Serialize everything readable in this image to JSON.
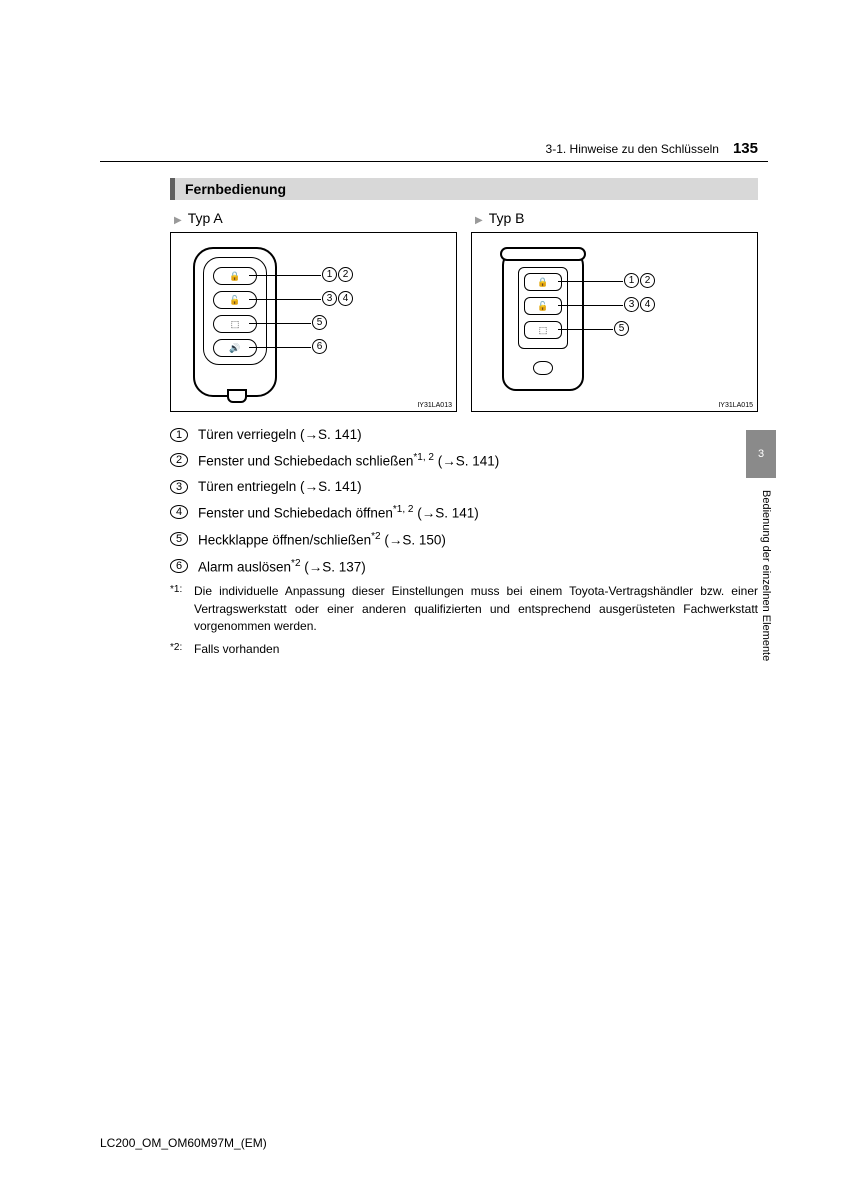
{
  "header": {
    "breadcrumb": "3-1. Hinweise zu den Schlüsseln",
    "page_number": "135"
  },
  "section_title": "Fernbedienung",
  "types": {
    "a": {
      "label": "Typ A",
      "diagram_id": "IY31LA013",
      "callouts": [
        "1",
        "2",
        "3",
        "4",
        "5",
        "6"
      ]
    },
    "b": {
      "label": "Typ B",
      "diagram_id": "IY31LA015",
      "callouts": [
        "1",
        "2",
        "3",
        "4",
        "5"
      ]
    }
  },
  "items": [
    {
      "n": "1",
      "text": "Türen verriegeln (",
      "page": "S. 141",
      "suffix": ")"
    },
    {
      "n": "2",
      "text": "Fenster und Schiebedach schließen",
      "sup": "*1, 2",
      "mid": " (",
      "page": "S. 141",
      "suffix": ")"
    },
    {
      "n": "3",
      "text": "Türen entriegeln (",
      "page": "S. 141",
      "suffix": ")"
    },
    {
      "n": "4",
      "text": "Fenster und Schiebedach öffnen",
      "sup": "*1, 2",
      "mid": " (",
      "page": "S. 141",
      "suffix": ")"
    },
    {
      "n": "5",
      "text": "Heckklappe öffnen/schließen",
      "sup": "*2",
      "mid": " (",
      "page": "S. 150",
      "suffix": ")"
    },
    {
      "n": "6",
      "text": "Alarm auslösen",
      "sup": "*2",
      "mid": " (",
      "page": "S. 137",
      "suffix": ")"
    }
  ],
  "footnotes": [
    {
      "mark": "*1:",
      "text": "Die individuelle Anpassung dieser Einstellungen muss bei einem Toyota-Vertragshändler bzw. einer Vertragswerkstatt oder einer anderen qualifizierten und entsprechend ausgerüsteten Fachwerkstatt vorgenommen werden."
    },
    {
      "mark": "*2:",
      "text": "Falls vorhanden"
    }
  ],
  "side": {
    "tab": "3",
    "text": "Bedienung der einzelnen Elemente"
  },
  "footer": "LC200_OM_OM60M97M_(EM)",
  "style": {
    "colors": {
      "section_bg": "#d8d8d8",
      "section_border": "#5f5f5f",
      "tab_bg": "#8a8a8a",
      "text": "#000000",
      "page_bg": "#ffffff"
    },
    "fonts": {
      "body_pt": 13.5,
      "header_pt": 12,
      "pagenum_pt": 15,
      "footnote_pt": 12
    }
  }
}
